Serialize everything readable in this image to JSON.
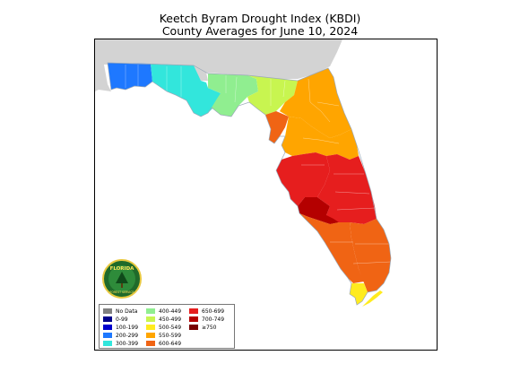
{
  "title_line1": "Keetch Byram Drought Index (KBDI)",
  "title_line2": "County Averages for June 10, 2024",
  "logo": {
    "line1": "FLORIDA",
    "line2": "FOREST SERVICE"
  },
  "colors": {
    "no_data": "#808080",
    "r0_99": "#00008b",
    "r100_199": "#0000cd",
    "r200_299": "#1e78ff",
    "r300_399": "#32e6dc",
    "r400_449": "#90ee90",
    "r450_499": "#c8f550",
    "r500_549": "#ffeb1e",
    "r550_599": "#ffa500",
    "r600_649": "#f06414",
    "r650_699": "#e61e1e",
    "r700_749": "#b40000",
    "r750_plus": "#780000",
    "neighbor_land": "#d3d3d3",
    "water": "#ffffff"
  },
  "legend": [
    {
      "label": "No Data",
      "color_key": "no_data"
    },
    {
      "label": "0-99",
      "color_key": "r0_99"
    },
    {
      "label": "100-199",
      "color_key": "r100_199"
    },
    {
      "label": "200-299",
      "color_key": "r200_299"
    },
    {
      "label": "300-399",
      "color_key": "r300_399"
    },
    {
      "label": "400-449",
      "color_key": "r400_449"
    },
    {
      "label": "450-499",
      "color_key": "r450_499"
    },
    {
      "label": "500-549",
      "color_key": "r500_549"
    },
    {
      "label": "550-599",
      "color_key": "r550_599"
    },
    {
      "label": "600-649",
      "color_key": "r600_649"
    },
    {
      "label": "650-699",
      "color_key": "r650_699"
    },
    {
      "label": "700-749",
      "color_key": "r700_749"
    },
    {
      "label": "≥750",
      "color_key": "r750_plus"
    }
  ],
  "regions": [
    {
      "name": "far-west-panhandle",
      "color_key": "r200_299"
    },
    {
      "name": "west-panhandle",
      "color_key": "r300_399"
    },
    {
      "name": "big-bend",
      "color_key": "r400_449"
    },
    {
      "name": "north-central",
      "color_key": "r450_499"
    },
    {
      "name": "northeast",
      "color_key": "r550_599"
    },
    {
      "name": "nature-coast",
      "color_key": "r600_649"
    },
    {
      "name": "central",
      "color_key": "r550_599"
    },
    {
      "name": "tampa-bay",
      "color_key": "r650_699"
    },
    {
      "name": "heartland",
      "color_key": "r650_699"
    },
    {
      "name": "interior-core",
      "color_key": "r700_749"
    },
    {
      "name": "southwest",
      "color_key": "r600_649"
    },
    {
      "name": "southeast",
      "color_key": "r600_649"
    },
    {
      "name": "keys",
      "color_key": "r500_549"
    }
  ]
}
